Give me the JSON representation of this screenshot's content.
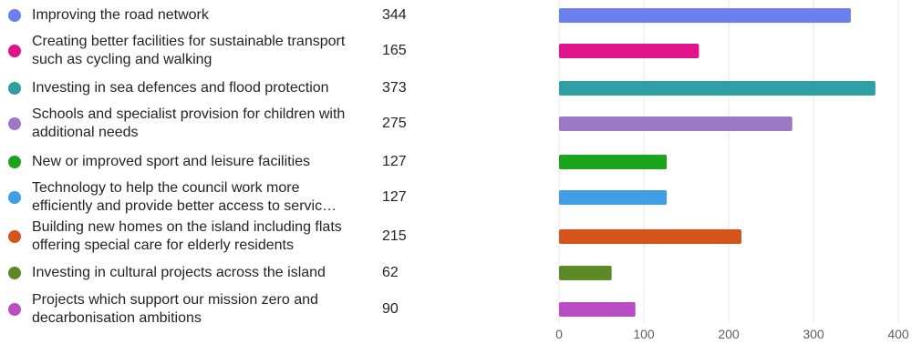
{
  "chart_data": {
    "type": "bar",
    "orientation": "horizontal",
    "categories": [
      "Improving the road network",
      "Creating better facilities for sustainable transport such as cycling and walking",
      "Investing in sea defences and flood protection",
      "Schools and specialist provision for children with additional needs",
      "New or improved sport and leisure facilities",
      "Technology to help the council work more efficiently and provide better access to servic…",
      "Building new homes on the island including flats offering special care for elderly residents",
      "Investing in cultural projects across the island",
      "Projects which support our mission zero and decarbonisation ambitions"
    ],
    "values": [
      344,
      165,
      373,
      275,
      127,
      127,
      215,
      62,
      90
    ],
    "value_labels": [
      "344",
      "165",
      "373",
      "275",
      "127",
      "127",
      "215",
      "62",
      "90"
    ],
    "colors": [
      "#6B7FEF",
      "#E0138C",
      "#2E9FA3",
      "#9C78C6",
      "#1BA31B",
      "#3F9EE6",
      "#D4541B",
      "#5B8A26",
      "#B94EC4"
    ],
    "xlim": [
      0,
      400
    ],
    "xticks": [
      "0",
      "100",
      "200",
      "300",
      "400"
    ],
    "grid": true,
    "legend": "left"
  }
}
